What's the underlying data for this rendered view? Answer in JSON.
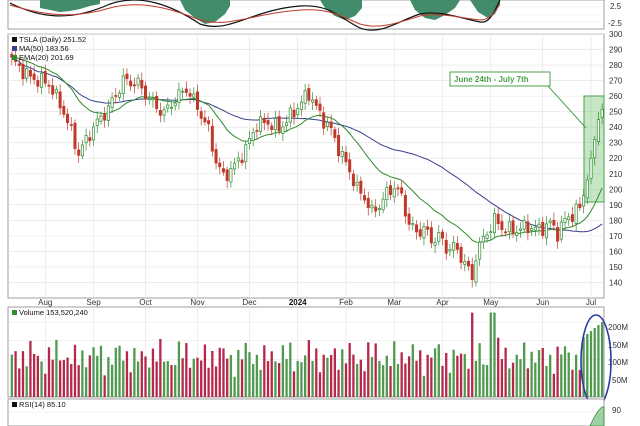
{
  "chart_data": {
    "type": "candlestick",
    "grid": true,
    "top_panel": {
      "y_tick_labels": [
        "2.5",
        "-2.5"
      ]
    },
    "price_panel": {
      "legend": [
        {
          "label": "TSLA (Daily) 251.52",
          "color": "#111111"
        },
        {
          "label": "MA(50) 183.56",
          "color": "#3a3f8f"
        },
        {
          "label": "EMA(20) 201.69",
          "color": "#2e8b2e"
        }
      ],
      "ylim": [
        130,
        300
      ],
      "y_ticks": [
        140,
        150,
        160,
        170,
        180,
        190,
        200,
        210,
        220,
        230,
        240,
        250,
        260,
        270,
        280,
        290,
        300
      ],
      "annotation": {
        "text": "June 24th - July 7th",
        "color": "#4aa04a"
      },
      "anchors": [
        [
          0,
          283
        ],
        [
          5,
          272
        ],
        [
          10,
          268
        ],
        [
          14,
          250
        ],
        [
          18,
          223
        ],
        [
          22,
          240
        ],
        [
          26,
          252
        ],
        [
          30,
          270
        ],
        [
          34,
          268
        ],
        [
          38,
          255
        ],
        [
          41,
          249
        ],
        [
          44,
          258
        ],
        [
          47,
          265
        ],
        [
          50,
          253
        ],
        [
          53,
          238
        ],
        [
          55,
          218
        ],
        [
          57,
          208
        ],
        [
          60,
          215
        ],
        [
          63,
          226
        ],
        [
          66,
          242
        ],
        [
          69,
          243
        ],
        [
          72,
          239
        ],
        [
          75,
          247
        ],
        [
          78,
          256
        ],
        [
          80,
          262
        ],
        [
          83,
          248
        ],
        [
          86,
          238
        ],
        [
          89,
          221
        ],
        [
          91,
          212
        ],
        [
          93,
          200
        ],
        [
          95,
          195
        ],
        [
          97,
          185
        ],
        [
          99,
          190
        ],
        [
          101,
          197
        ],
        [
          103,
          202
        ],
        [
          105,
          195
        ],
        [
          107,
          178
        ],
        [
          109,
          172
        ],
        [
          111,
          175
        ],
        [
          113,
          167
        ],
        [
          115,
          170
        ],
        [
          117,
          162
        ],
        [
          119,
          163
        ],
        [
          121,
          157
        ],
        [
          123,
          148
        ],
        [
          124,
          142
        ],
        [
          125,
          158
        ],
        [
          127,
          168
        ],
        [
          130,
          180
        ],
        [
          133,
          174
        ],
        [
          136,
          174
        ],
        [
          139,
          176
        ],
        [
          142,
          174
        ],
        [
          145,
          178
        ],
        [
          147,
          172
        ],
        [
          149,
          180
        ],
        [
          151,
          184
        ],
        [
          153,
          188
        ],
        [
          154,
          196
        ],
        [
          155,
          206
        ],
        [
          156,
          220
        ],
        [
          157,
          232
        ],
        [
          158,
          245
        ],
        [
          159,
          251.52
        ]
      ],
      "x_tick_labels": [
        "Aug",
        "Sep",
        "Oct",
        "Nov",
        "Dec",
        "2024",
        "Feb",
        "Mar",
        "Apr",
        "May",
        "Jun",
        "Jul"
      ]
    },
    "volume_panel": {
      "legend": "Volume 153,520,240",
      "y_tick_labels": [
        "200M",
        "150M",
        "100M",
        "50M"
      ],
      "ylim": [
        0,
        240
      ]
    },
    "rsi_panel": {
      "legend": "RSI(14) 85.10",
      "y_tick_labels": [
        "90"
      ]
    }
  }
}
